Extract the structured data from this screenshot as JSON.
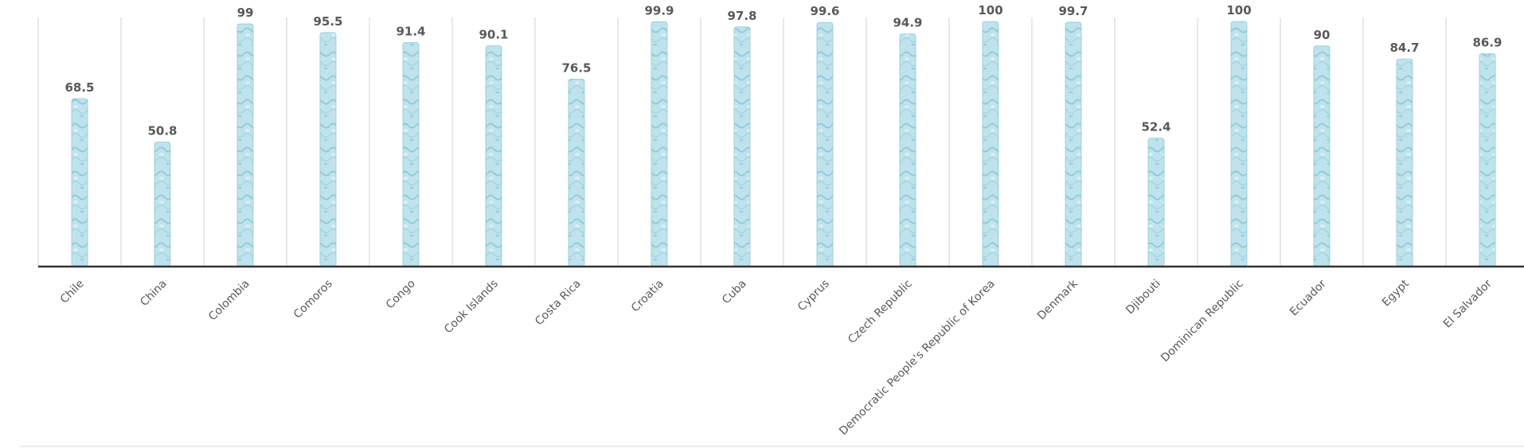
{
  "chart_data": {
    "type": "bar",
    "categories": [
      "Chile",
      "China",
      "Colombia",
      "Comoros",
      "Congo",
      "Cook Islands",
      "Costa Rica",
      "Croatia",
      "Cuba",
      "Cyprus",
      "Czech Republic",
      "Democratic People's Republic of Korea",
      "Denmark",
      "Djibouti",
      "Dominican Republic",
      "Ecuador",
      "Egypt",
      "El Salvador"
    ],
    "values": [
      68.5,
      50.8,
      99,
      95.5,
      91.4,
      90.1,
      76.5,
      99.9,
      97.8,
      99.6,
      94.9,
      100,
      99.7,
      52.4,
      100,
      90,
      84.7,
      86.9
    ],
    "value_labels": [
      "68.5",
      "50.8",
      "99",
      "95.5",
      "91.4",
      "90.1",
      "76.5",
      "99.9",
      "97.8",
      "99.6",
      "94.9",
      "100",
      "99.7",
      "52.4",
      "100",
      "90",
      "84.7",
      "86.9"
    ],
    "title": "",
    "xlabel": "",
    "ylabel": "",
    "ylim": [
      0,
      100
    ],
    "grid": "vertical category separators",
    "legend": "none",
    "colors": {
      "bar_fill": "#b9e0ea",
      "bar_texture": "#8fc9d8",
      "axis": "#333333",
      "gridline": "#d9d9d9",
      "label": "#595959"
    }
  }
}
